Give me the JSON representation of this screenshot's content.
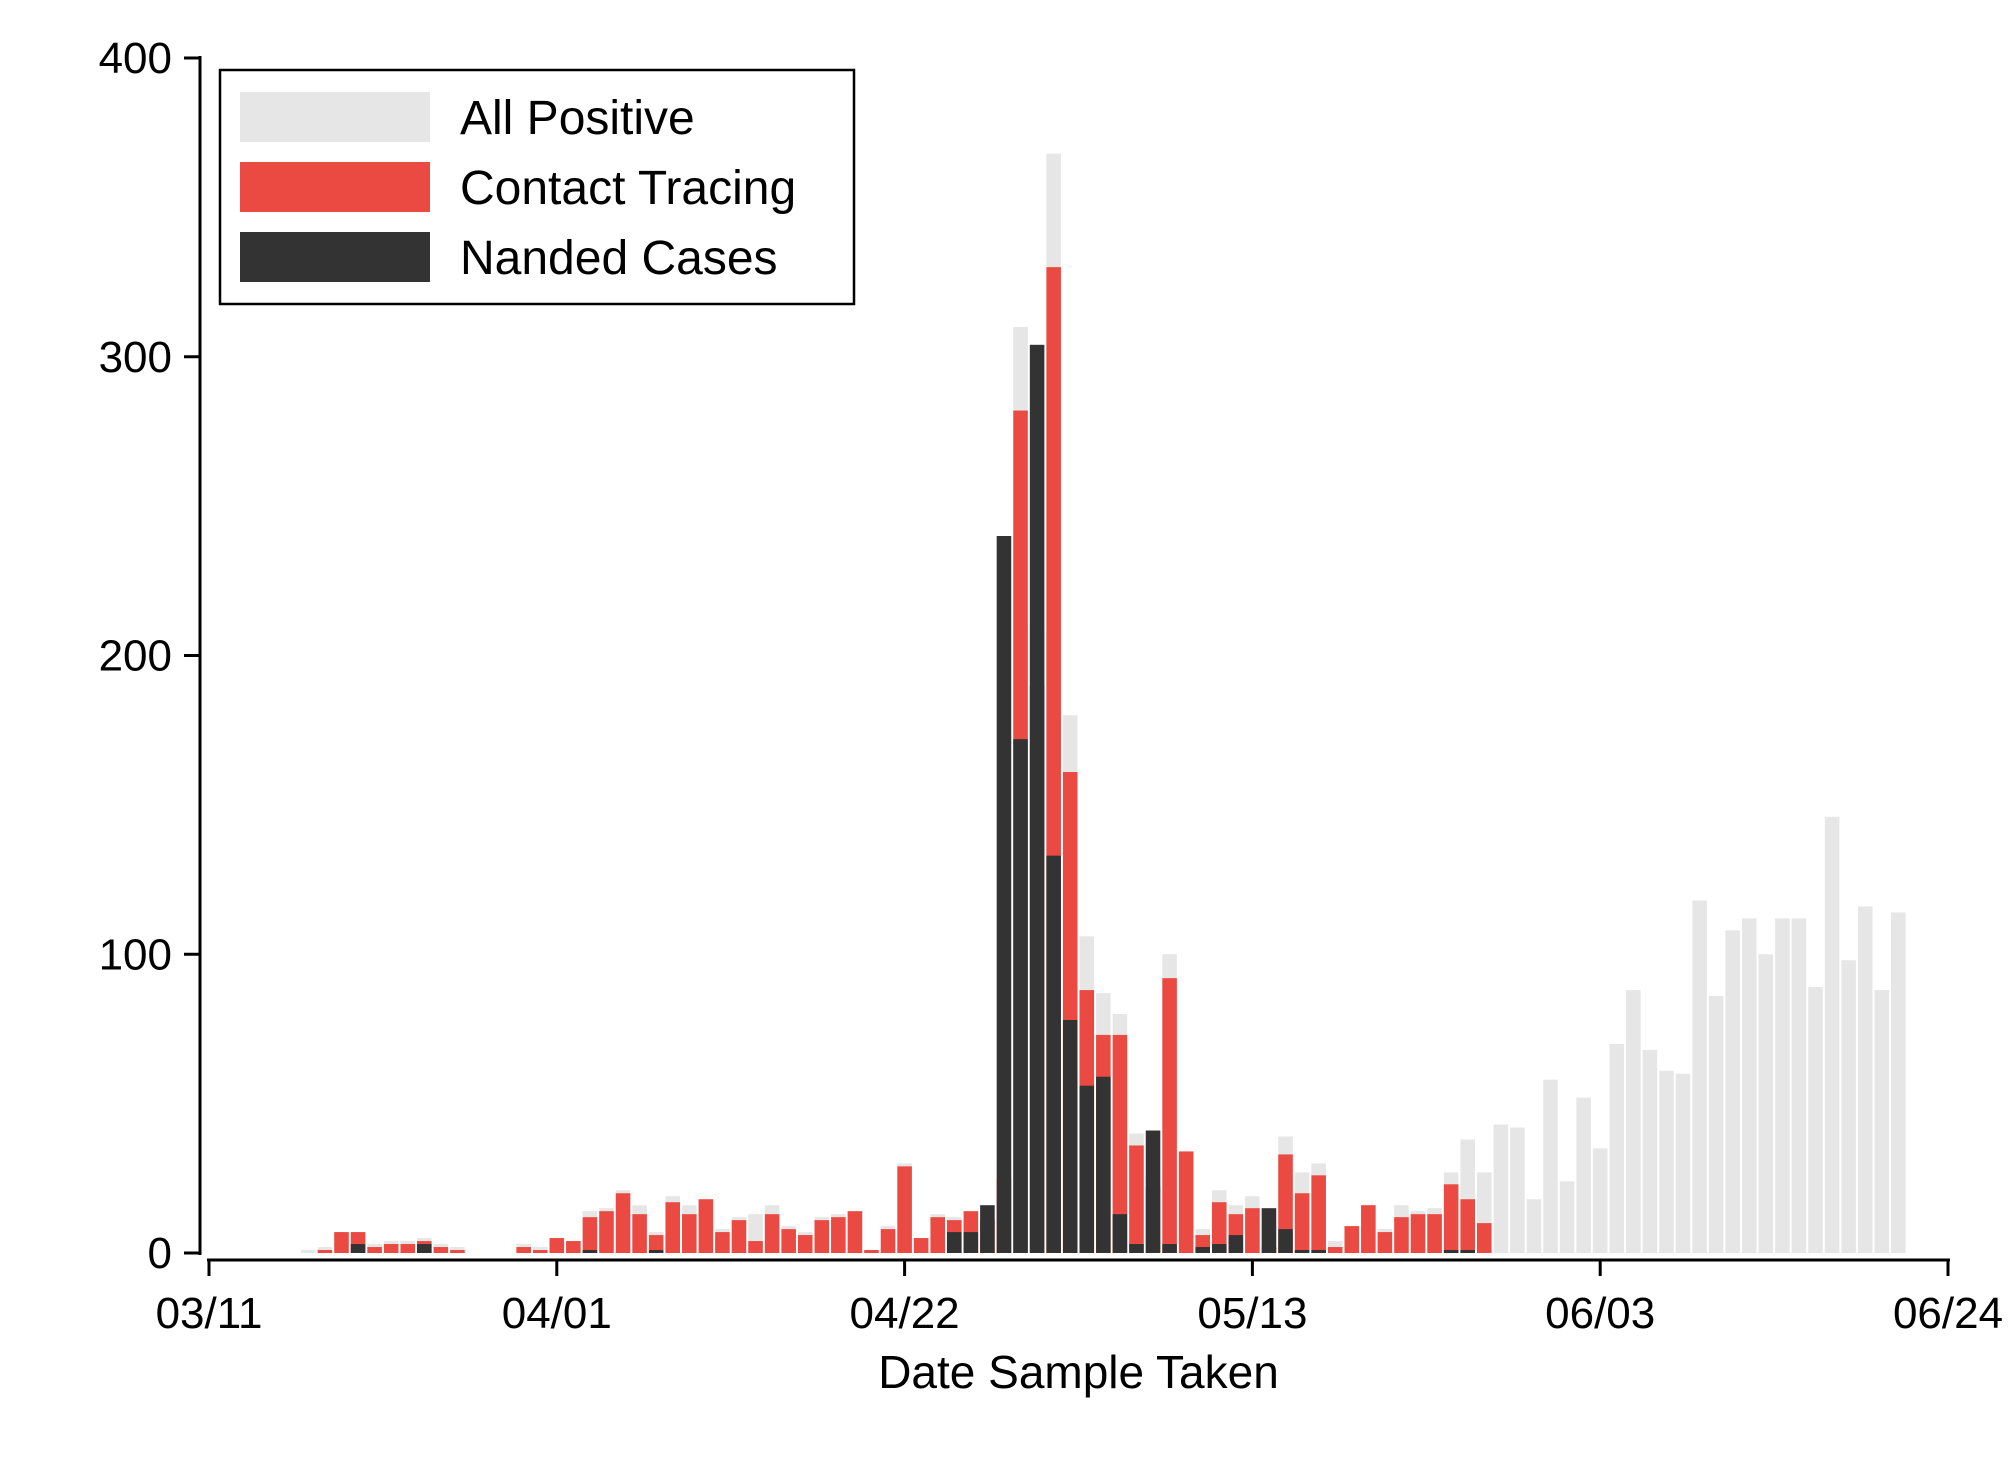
{
  "chart_data": {
    "type": "bar",
    "stacked": false,
    "overlaid": true,
    "xlabel": "Date Sample Taken",
    "ylabel": "",
    "ylim": [
      0,
      400
    ],
    "y_ticks": [
      0,
      100,
      200,
      300,
      400
    ],
    "x_tick_labels": [
      "03/11",
      "04/01",
      "04/22",
      "05/13",
      "06/03",
      "06/24"
    ],
    "x_tick_dates": [
      "2020-03-11",
      "2020-04-01",
      "2020-04-22",
      "2020-05-13",
      "2020-06-03",
      "2020-06-24"
    ],
    "grid": false,
    "legend_position": "top-left",
    "legend": [
      "All Positive",
      "Contact Tracing",
      "Nanded Cases"
    ],
    "colors": {
      "all_positive": "#e6e6e6",
      "contact_tracing": "#ea4a42",
      "nanded_cases": "#333333"
    },
    "dates": [
      "2020-03-17",
      "2020-03-18",
      "2020-03-19",
      "2020-03-20",
      "2020-03-21",
      "2020-03-22",
      "2020-03-23",
      "2020-03-24",
      "2020-03-25",
      "2020-03-26",
      "2020-03-27",
      "2020-03-28",
      "2020-03-29",
      "2020-03-30",
      "2020-03-31",
      "2020-04-01",
      "2020-04-02",
      "2020-04-03",
      "2020-04-04",
      "2020-04-05",
      "2020-04-06",
      "2020-04-07",
      "2020-04-08",
      "2020-04-09",
      "2020-04-10",
      "2020-04-11",
      "2020-04-12",
      "2020-04-13",
      "2020-04-14",
      "2020-04-15",
      "2020-04-16",
      "2020-04-17",
      "2020-04-18",
      "2020-04-19",
      "2020-04-20",
      "2020-04-21",
      "2020-04-22",
      "2020-04-23",
      "2020-04-24",
      "2020-04-25",
      "2020-04-26",
      "2020-04-27",
      "2020-04-28",
      "2020-04-29",
      "2020-04-30",
      "2020-05-01",
      "2020-05-02",
      "2020-05-03",
      "2020-05-04",
      "2020-05-05",
      "2020-05-06",
      "2020-05-07",
      "2020-05-08",
      "2020-05-09",
      "2020-05-10",
      "2020-05-11",
      "2020-05-12",
      "2020-05-13",
      "2020-05-14",
      "2020-05-15",
      "2020-05-16",
      "2020-05-17",
      "2020-05-18",
      "2020-05-19",
      "2020-05-20",
      "2020-05-21",
      "2020-05-22",
      "2020-05-23",
      "2020-05-24",
      "2020-05-25",
      "2020-05-26",
      "2020-05-27",
      "2020-05-28",
      "2020-05-29",
      "2020-05-30",
      "2020-05-31",
      "2020-06-01",
      "2020-06-02",
      "2020-06-03",
      "2020-06-04",
      "2020-06-05",
      "2020-06-06",
      "2020-06-07",
      "2020-06-08",
      "2020-06-09",
      "2020-06-10",
      "2020-06-11",
      "2020-06-12",
      "2020-06-13",
      "2020-06-14",
      "2020-06-15",
      "2020-06-16",
      "2020-06-17",
      "2020-06-18",
      "2020-06-19",
      "2020-06-20",
      "2020-06-21"
    ],
    "series": [
      {
        "name": "All Positive",
        "values": [
          1,
          2,
          7,
          7,
          3,
          4,
          4,
          5,
          3,
          2,
          0,
          0,
          0,
          3,
          2,
          5,
          4,
          14,
          15,
          21,
          16,
          7,
          19,
          16,
          18,
          8,
          12,
          13,
          16,
          9,
          7,
          12,
          13,
          14,
          1,
          9,
          30,
          5,
          13,
          12,
          14,
          12,
          31,
          310,
          209,
          368,
          180,
          106,
          87,
          80,
          40,
          26,
          100,
          34,
          8,
          21,
          16,
          19,
          9,
          39,
          27,
          30,
          4,
          9,
          16,
          8,
          16,
          14,
          15,
          27,
          38,
          27,
          43,
          42,
          18,
          58,
          24,
          52,
          35,
          70,
          88,
          68,
          61,
          60,
          118,
          86,
          108,
          112,
          100,
          112,
          112,
          89,
          146,
          98,
          116,
          88,
          114
        ]
      },
      {
        "name": "Contact Tracing",
        "values": [
          0,
          1,
          7,
          7,
          2,
          3,
          3,
          4,
          2,
          1,
          0,
          0,
          0,
          2,
          1,
          5,
          4,
          12,
          14,
          20,
          13,
          6,
          17,
          13,
          18,
          7,
          11,
          4,
          13,
          8,
          6,
          11,
          12,
          14,
          1,
          8,
          29,
          5,
          12,
          11,
          14,
          11,
          25,
          282,
          190,
          330,
          161,
          88,
          73,
          73,
          36,
          22,
          92,
          34,
          6,
          17,
          13,
          15,
          2,
          33,
          20,
          26,
          2,
          9,
          16,
          7,
          12,
          13,
          13,
          23,
          18,
          10,
          0,
          0,
          0,
          0,
          0,
          0,
          0,
          0,
          0,
          0,
          0,
          0,
          0,
          0,
          0,
          0,
          0,
          0,
          0,
          0,
          0,
          0,
          0,
          0,
          0
        ]
      },
      {
        "name": "Nanded Cases",
        "values": [
          0,
          0,
          0,
          3,
          0,
          0,
          0,
          3,
          0,
          0,
          0,
          0,
          0,
          0,
          0,
          0,
          0,
          1,
          0,
          0,
          0,
          1,
          0,
          0,
          0,
          0,
          0,
          0,
          0,
          0,
          0,
          0,
          0,
          0,
          0,
          0,
          0,
          0,
          0,
          7,
          7,
          16,
          240,
          172,
          304,
          133,
          78,
          56,
          59,
          13,
          3,
          41,
          3,
          0,
          2,
          3,
          6,
          0,
          15,
          8,
          1,
          1,
          0,
          0,
          0,
          0,
          0,
          0,
          0,
          1,
          1,
          0,
          0,
          0,
          0,
          0,
          0,
          0,
          0,
          0,
          0,
          0,
          0,
          0,
          0,
          0,
          0,
          0,
          0,
          0,
          0,
          0,
          0,
          0,
          0,
          0,
          0
        ]
      }
    ]
  }
}
